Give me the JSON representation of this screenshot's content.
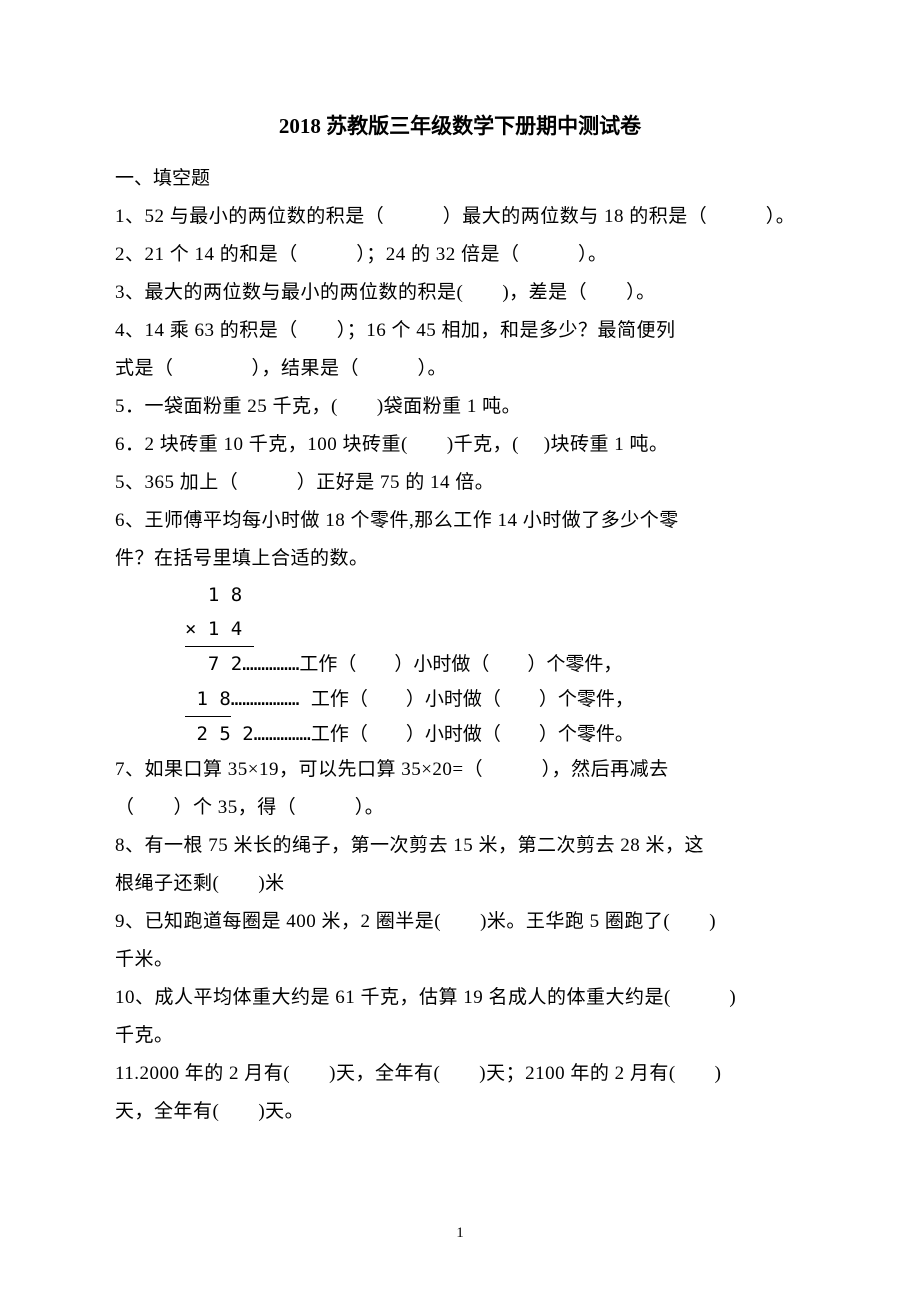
{
  "title": "2018 苏教版三年级数学下册期中测试卷",
  "section1": "一、填空题",
  "q1": "1、52 与最小的两位数的积是（　　　）最大的两位数与 18 的积是（　　　）。",
  "q2": "2、21 个 14 的和是（　　　）；24 的 32 倍是（　　　）。",
  "q3": "3、最大的两位数与最小的两位数的积是(　　)，差是（　　）。",
  "q4a": "4、14 乘 63 的积是（　　）；16 个 45 相加，和是多少？最简便列",
  "q4b": "式是（　　　　），结果是（　　　）。",
  "q5a": "5．一袋面粉重 25 千克，(　　)袋面粉重 1 吨。",
  "q6a": "6．2 块砖重 10 千克，100 块砖重(　　)千克，(　  )块砖重 1 吨。",
  "q5b": "5、365 加上（　　　）正好是 75 的 14 倍。",
  "q6b1": "6、王师傅平均每小时做 18 个零件,那么工作 14 小时做了多少个零",
  "q6b2": "件？在括号里填上合适的数。",
  "calc": {
    "r1": "  1 8",
    "r2_under": "× 1 4 ",
    "r3": "  7 2……………工作（　　）小时做（　　）个零件，",
    "r4_under": " 1 8",
    "r4_tail": "……………… 工作（　　）小时做（　　）个零件，",
    "r5": " 2 5 2……………工作（　　）小时做（　　）个零件。"
  },
  "q7a": "7、如果口算 35×19，可以先口算 35×20=（　　　），然后再减去",
  "q7b": "（　　）个 35，得（　　　）。",
  "q8a": "8、有一根 75 米长的绳子，第一次剪去 15 米，第二次剪去 28 米，这",
  "q8b": "根绳子还剩(　　)米",
  "q9a": " 9、已知跑道每圈是 400 米，2 圈半是(　　)米。王华跑 5 圈跑了(　　)",
  "q9b": "千米。",
  "q10a": "10、成人平均体重大约是 61 千克，估算 19 名成人的体重大约是(　　　)",
  "q10b": "千克。",
  "q11a": "11.2000 年的 2 月有(　　)天，全年有(　　)天；2100 年的 2 月有(　　)",
  "q11b": "天，全年有(　　)天。",
  "page_number": "1"
}
